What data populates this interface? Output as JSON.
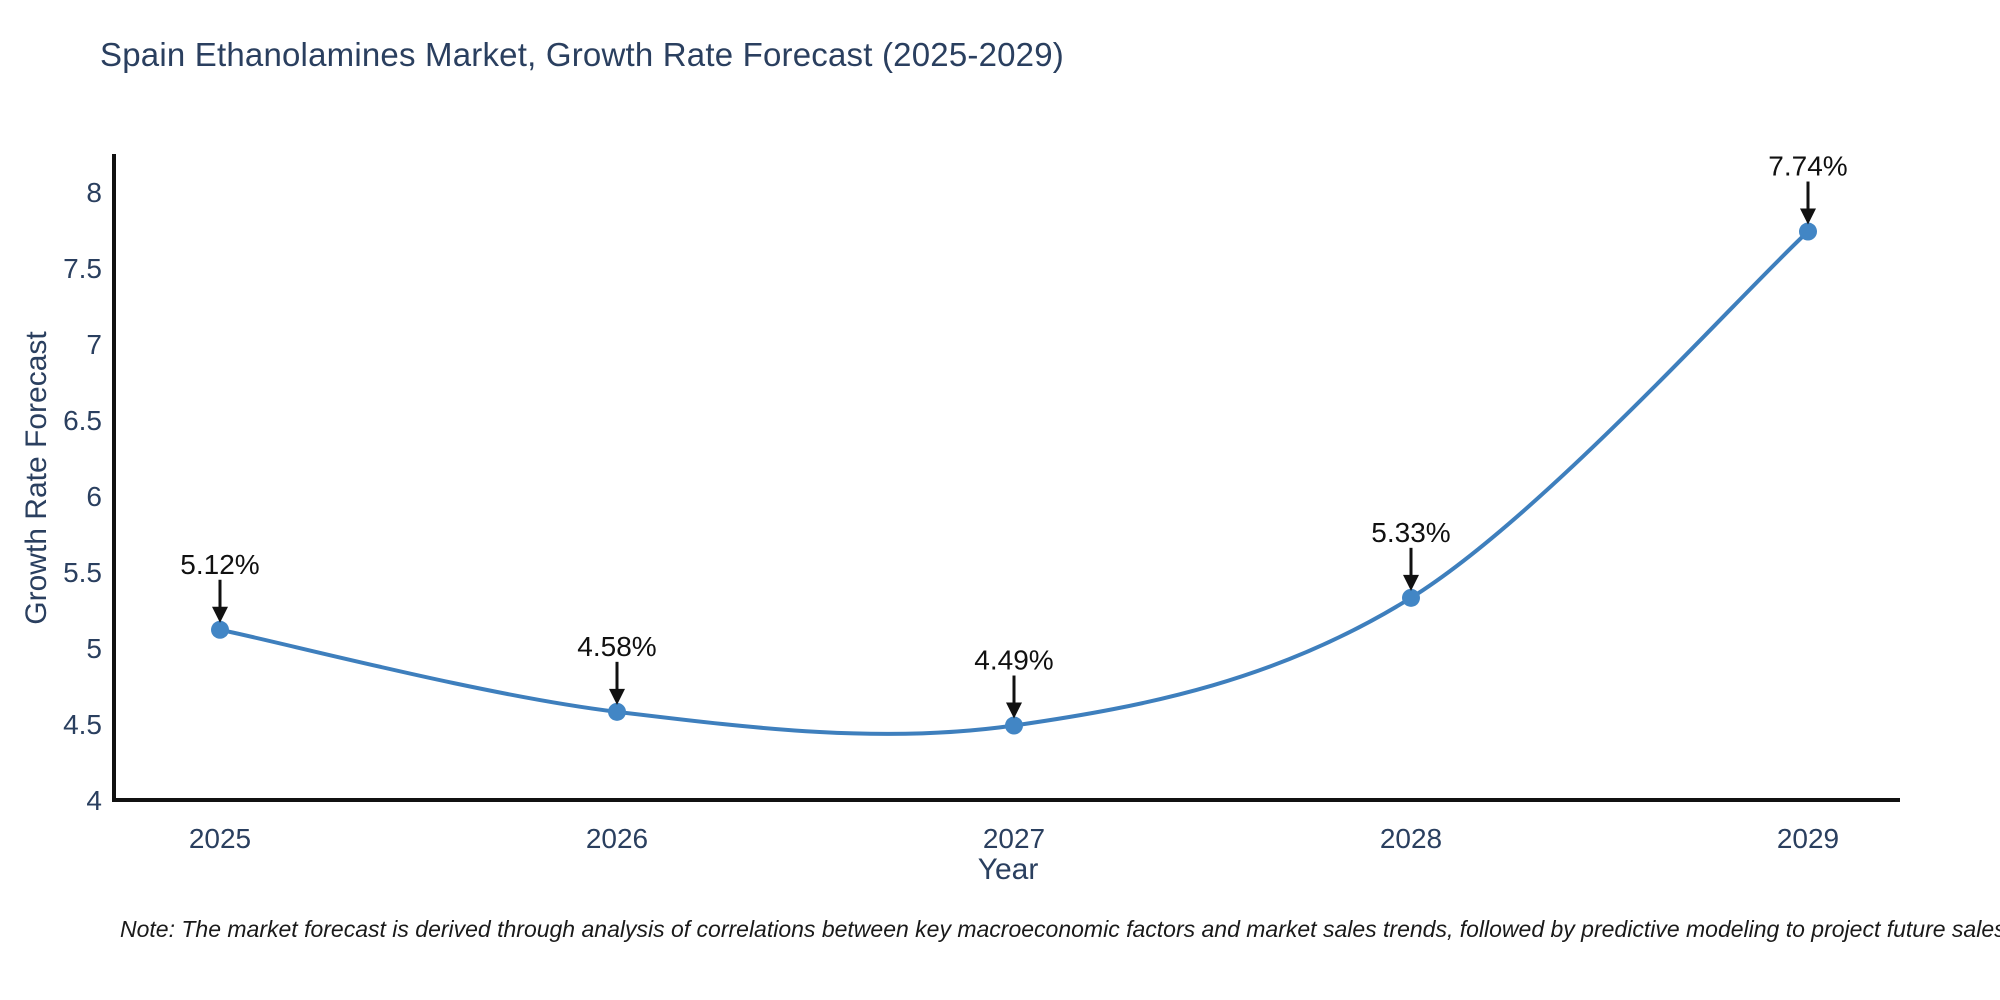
{
  "title": "Spain Ethanolamines Market, Growth Rate Forecast (2025-2029)",
  "note": "Note: The market forecast is derived through analysis of correlations between key macroeconomic factors and market sales trends, followed by predictive modeling to project future sales",
  "colors": {
    "line": "#3e7fbd",
    "marker": "#4286c5",
    "axis": "#111111",
    "tick_text": "#2a3f5f",
    "title_text": "#2a3f5f",
    "annotation": "#111111",
    "background": "#ffffff"
  },
  "chart_data": {
    "type": "line",
    "line_shape": "spline",
    "title": "Spain Ethanolamines Market, Growth Rate Forecast (2025-2029)",
    "xlabel": "Year",
    "ylabel": "Growth Rate Forecast",
    "x": [
      2025,
      2026,
      2027,
      2028,
      2029
    ],
    "categories": [
      "2025",
      "2026",
      "2027",
      "2028",
      "2029"
    ],
    "series": [
      {
        "name": "Growth Rate Forecast",
        "values": [
          5.12,
          4.58,
          4.49,
          5.33,
          7.74
        ]
      }
    ],
    "annotations": [
      "5.12%",
      "4.58%",
      "4.49%",
      "5.33%",
      "7.74%"
    ],
    "ylim": [
      4,
      8.26
    ],
    "yticks": [
      4,
      4.5,
      5,
      5.5,
      6,
      6.5,
      7,
      7.5,
      8
    ],
    "ytick_labels": [
      "4",
      "4.5",
      "5",
      "5.5",
      "6",
      "6.5",
      "7",
      "7.5",
      "8"
    ],
    "grid": false,
    "legend": "none",
    "markers": true
  }
}
